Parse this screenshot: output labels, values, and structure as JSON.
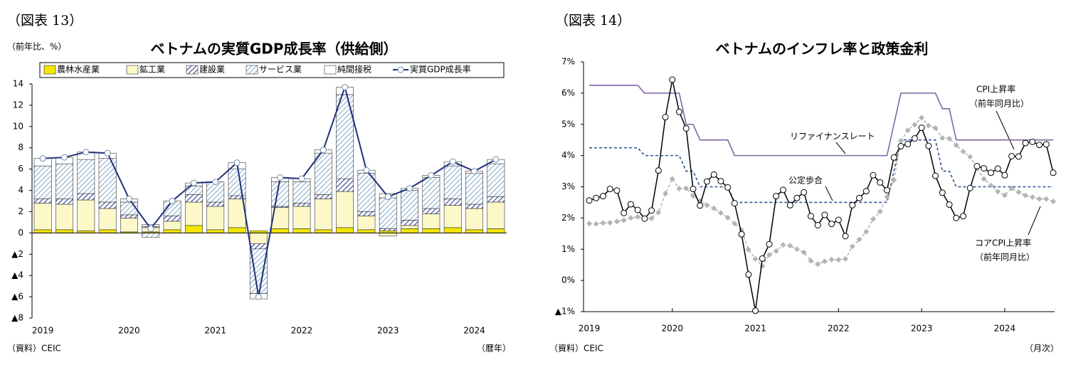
{
  "chart_data": [
    {
      "type": "bar",
      "stacked": true,
      "figure_label": "（図表 13）",
      "y_unit": "（前年比、%）",
      "title": "ベトナムの実質GDP成長率（供給側）",
      "source": "（資料）CEIC",
      "x_unit": "（暦年）",
      "categories": [
        "2019",
        null,
        null,
        null,
        "2020",
        null,
        null,
        null,
        "2021",
        null,
        null,
        null,
        "2022",
        null,
        null,
        null,
        "2023",
        null,
        null,
        null,
        "2024",
        null
      ],
      "ylim": [
        -8,
        14
      ],
      "yticks": [
        {
          "value": -8,
          "label": "▲8"
        },
        {
          "value": -6,
          "label": "▲6"
        },
        {
          "value": -4,
          "label": "▲4"
        },
        {
          "value": -2,
          "label": "▲2"
        },
        0,
        2,
        4,
        6,
        8,
        10,
        12,
        14
      ],
      "series": [
        {
          "name": "農林水産業",
          "color": "#f5e600",
          "values": [
            0.3,
            0.3,
            0.2,
            0.3,
            0.1,
            0.1,
            0.3,
            0.7,
            0.3,
            0.5,
            0.2,
            0.4,
            0.4,
            0.3,
            0.5,
            0.3,
            0.2,
            0.4,
            0.4,
            0.5,
            0.3,
            0.4
          ]
        },
        {
          "name": "鉱工業",
          "color": "#fdf8c8",
          "values": [
            2.5,
            2.4,
            2.9,
            2.0,
            1.3,
            0.4,
            0.8,
            2.2,
            2.2,
            2.7,
            -1.0,
            2.0,
            2.1,
            2.9,
            3.4,
            1.3,
            -0.3,
            0.3,
            1.4,
            2.1,
            2.0,
            2.5
          ]
        },
        {
          "name": "建設業",
          "color": "#1f2f8c",
          "hatch": true,
          "values": [
            0.4,
            0.5,
            0.6,
            0.6,
            0.3,
            0.1,
            0.5,
            0.7,
            0.4,
            0.3,
            -0.5,
            0.1,
            0.3,
            0.4,
            1.2,
            0.4,
            0.2,
            0.5,
            0.5,
            0.6,
            0.4,
            0.5
          ]
        },
        {
          "name": "サービス業",
          "color": "#7fa7c9",
          "hatch": true,
          "values": [
            3.1,
            3.3,
            3.2,
            4.1,
            1.2,
            -0.4,
            1.4,
            0.8,
            1.9,
            2.5,
            -4.2,
            2.3,
            2.0,
            3.9,
            7.9,
            3.6,
            2.9,
            2.8,
            2.9,
            3.1,
            2.9,
            3.1
          ]
        },
        {
          "name": "純間接税",
          "color": "#ffffff",
          "values": [
            0.7,
            0.6,
            0.7,
            0.5,
            0.3,
            0.2,
            0.0,
            0.3,
            0.0,
            0.6,
            -0.5,
            0.4,
            0.3,
            0.3,
            0.7,
            0.3,
            0.4,
            0.2,
            0.2,
            0.4,
            0.2,
            0.4
          ]
        },
        {
          "name": "実質GDP成長率",
          "type": "line",
          "color": "#1f2f7a",
          "marker": "circle",
          "values": [
            7.0,
            7.1,
            7.6,
            7.5,
            3.2,
            0.4,
            3.0,
            4.7,
            4.8,
            6.6,
            -6.0,
            5.2,
            5.1,
            7.8,
            13.7,
            5.9,
            3.4,
            4.2,
            5.4,
            6.7,
            5.8,
            6.9
          ]
        }
      ]
    },
    {
      "type": "line",
      "figure_label": "（図表 14）",
      "title": "ベトナムのインフレ率と政策金利",
      "source": "（資料）CEIC",
      "x_unit": "（月次）",
      "categories": [
        "2019",
        null,
        null,
        null,
        null,
        null,
        null,
        null,
        null,
        null,
        null,
        null,
        "2020",
        null,
        null,
        null,
        null,
        null,
        null,
        null,
        null,
        null,
        null,
        null,
        "2021",
        null,
        null,
        null,
        null,
        null,
        null,
        null,
        null,
        null,
        null,
        null,
        "2022",
        null,
        null,
        null,
        null,
        null,
        null,
        null,
        null,
        null,
        null,
        null,
        "2023",
        null,
        null,
        null,
        null,
        null,
        null,
        null,
        null,
        null,
        null,
        null,
        "2024",
        null,
        null,
        null,
        null,
        null,
        null,
        null
      ],
      "ylim": [
        -1,
        7
      ],
      "yticks": [
        {
          "value": -1,
          "label": "▲1%"
        },
        {
          "value": 0,
          "label": "0%"
        },
        {
          "value": 1,
          "label": "1%"
        },
        {
          "value": 2,
          "label": "2%"
        },
        {
          "value": 3,
          "label": "3%"
        },
        {
          "value": 4,
          "label": "4%"
        },
        {
          "value": 5,
          "label": "5%"
        },
        {
          "value": 6,
          "label": "6%"
        },
        {
          "value": 7,
          "label": "7%"
        }
      ],
      "annotations": [
        "（前年同月比）",
        "（前年同月比）"
      ],
      "series": [
        {
          "name": "リファイナンスレート",
          "color": "#8064a2",
          "values": [
            6.25,
            6.25,
            6.25,
            6.25,
            6.25,
            6.25,
            6.25,
            6.25,
            6,
            6,
            6,
            6,
            6,
            6,
            5,
            5,
            4.5,
            4.5,
            4.5,
            4.5,
            4.5,
            4,
            4,
            4,
            4,
            4,
            4,
            4,
            4,
            4,
            4,
            4,
            4,
            4,
            4,
            4,
            4,
            4,
            4,
            4,
            4,
            4,
            4,
            4,
            5,
            6,
            6,
            6,
            6,
            6,
            6,
            5.5,
            5.5,
            4.5,
            4.5,
            4.5,
            4.5,
            4.5,
            4.5,
            4.5,
            4.5,
            4.5,
            4.5,
            4.5,
            4.5,
            4.5,
            4.5,
            4.5
          ]
        },
        {
          "name": "公定歩合",
          "color": "#2f5597",
          "dash": true,
          "values": [
            4.25,
            4.25,
            4.25,
            4.25,
            4.25,
            4.25,
            4.25,
            4.25,
            4,
            4,
            4,
            4,
            4,
            4,
            3.5,
            3.5,
            3,
            3,
            3,
            3,
            3,
            2.5,
            2.5,
            2.5,
            2.5,
            2.5,
            2.5,
            2.5,
            2.5,
            2.5,
            2.5,
            2.5,
            2.5,
            2.5,
            2.5,
            2.5,
            2.5,
            2.5,
            2.5,
            2.5,
            2.5,
            2.5,
            2.5,
            2.5,
            3.5,
            4.5,
            4.5,
            4.5,
            4.5,
            4.5,
            4.5,
            3.5,
            3.5,
            3,
            3,
            3,
            3,
            3,
            3,
            3,
            3,
            3,
            3,
            3,
            3,
            3,
            3,
            3
          ]
        },
        {
          "name": "コアCPI上昇率",
          "color": "#b4b4b4",
          "dash": true,
          "marker": "diamond",
          "values": [
            1.82,
            1.81,
            1.84,
            1.85,
            1.89,
            1.93,
            2.0,
            2.04,
            1.96,
            1.99,
            2.18,
            2.78,
            3.25,
            2.94,
            2.95,
            2.71,
            2.55,
            2.41,
            2.31,
            2.16,
            2.01,
            1.82,
            1.61,
            0.99,
            0.69,
            0.46,
            0.82,
            0.94,
            1.14,
            1.11,
            1.0,
            0.9,
            0.63,
            0.52,
            0.61,
            0.67,
            0.66,
            0.69,
            1.09,
            1.31,
            1.56,
            1.97,
            2.21,
            2.68,
            3.21,
            4.47,
            4.81,
            4.99,
            5.21,
            4.96,
            4.88,
            4.56,
            4.54,
            4.33,
            4.13,
            3.96,
            3.59,
            3.25,
            3.04,
            2.85,
            2.73,
            2.95,
            2.83,
            2.72,
            2.67,
            2.61,
            2.61,
            2.53
          ]
        },
        {
          "name": "CPI上昇率",
          "color": "#000000",
          "marker": "circle",
          "values": [
            2.56,
            2.64,
            2.7,
            2.93,
            2.88,
            2.16,
            2.44,
            2.26,
            1.98,
            2.24,
            3.52,
            5.23,
            6.43,
            5.4,
            4.87,
            2.93,
            2.4,
            3.17,
            3.39,
            3.18,
            2.98,
            2.47,
            1.48,
            0.19,
            -0.97,
            0.7,
            1.16,
            2.7,
            2.9,
            2.41,
            2.64,
            2.82,
            2.06,
            1.77,
            2.1,
            1.81,
            1.94,
            1.42,
            2.41,
            2.64,
            2.86,
            3.37,
            3.14,
            2.89,
            3.94,
            4.3,
            4.37,
            4.55,
            4.89,
            4.31,
            3.35,
            2.81,
            2.43,
            2.0,
            2.06,
            2.96,
            3.66,
            3.59,
            3.45,
            3.58,
            3.37,
            3.98,
            3.97,
            4.4,
            4.44,
            4.34,
            4.36,
            3.45
          ]
        }
      ]
    }
  ]
}
